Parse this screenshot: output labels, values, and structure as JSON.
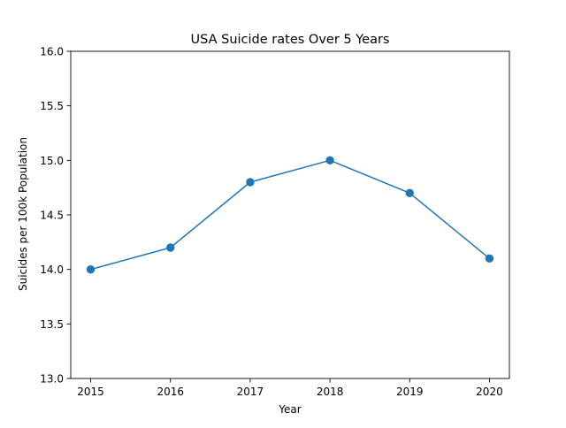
{
  "chart_data": {
    "type": "line",
    "title": "USA Suicide rates Over 5 Years",
    "xlabel": "Year",
    "ylabel": "Suicides per 100k Population",
    "x": [
      2015,
      2016,
      2017,
      2018,
      2019,
      2020
    ],
    "series": [
      {
        "values": [
          14.0,
          14.2,
          14.8,
          15.0,
          14.7,
          14.1
        ],
        "color": "#1f77b4",
        "marker": "circle"
      }
    ],
    "xlim": [
      2014.75,
      2020.25
    ],
    "ylim": [
      13.0,
      16.0
    ],
    "xticks": [
      "2015",
      "2016",
      "2017",
      "2018",
      "2019",
      "2020"
    ],
    "yticks": [
      "13.0",
      "13.5",
      "14.0",
      "14.5",
      "15.0",
      "15.5",
      "16.0"
    ],
    "grid": false,
    "legend": "none"
  }
}
